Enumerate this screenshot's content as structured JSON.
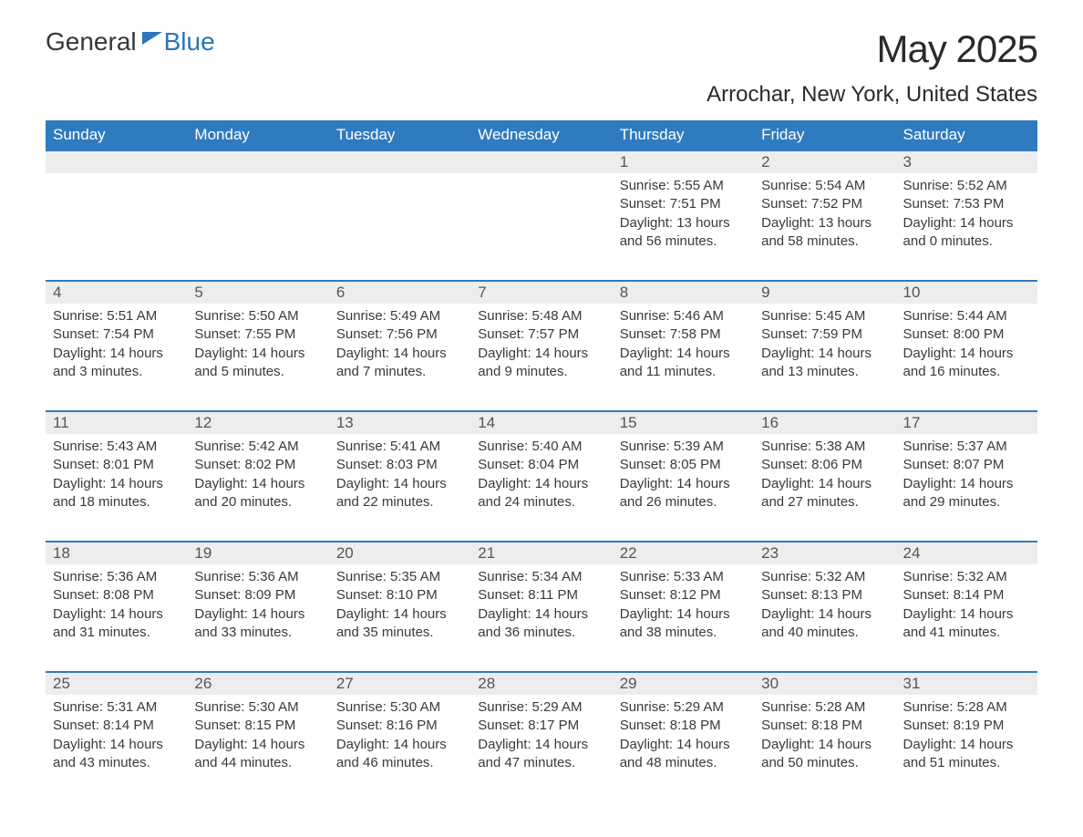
{
  "logo": {
    "text_general": "General",
    "text_blue": "Blue"
  },
  "title": "May 2025",
  "location": "Arrochar, New York, United States",
  "colors": {
    "header_bg": "#2f7bbf",
    "header_text": "#ffffff",
    "daynum_bg": "#ededed",
    "daynum_text": "#555555",
    "body_text": "#3a3a3a",
    "logo_general": "#373737",
    "logo_blue": "#2c75b8",
    "title_text": "#2a2a2a",
    "border_top": "#2f7bbf",
    "background": "#ffffff"
  },
  "typography": {
    "month_title_size": 42,
    "location_size": 24,
    "weekday_size": 17,
    "daynum_size": 17,
    "content_size": 15,
    "logo_size": 28
  },
  "weekdays": [
    "Sunday",
    "Monday",
    "Tuesday",
    "Wednesday",
    "Thursday",
    "Friday",
    "Saturday"
  ],
  "weeks": [
    [
      null,
      null,
      null,
      null,
      {
        "day": "1",
        "sunrise": "5:55 AM",
        "sunset": "7:51 PM",
        "daylight": "13 hours and 56 minutes."
      },
      {
        "day": "2",
        "sunrise": "5:54 AM",
        "sunset": "7:52 PM",
        "daylight": "13 hours and 58 minutes."
      },
      {
        "day": "3",
        "sunrise": "5:52 AM",
        "sunset": "7:53 PM",
        "daylight": "14 hours and 0 minutes."
      }
    ],
    [
      {
        "day": "4",
        "sunrise": "5:51 AM",
        "sunset": "7:54 PM",
        "daylight": "14 hours and 3 minutes."
      },
      {
        "day": "5",
        "sunrise": "5:50 AM",
        "sunset": "7:55 PM",
        "daylight": "14 hours and 5 minutes."
      },
      {
        "day": "6",
        "sunrise": "5:49 AM",
        "sunset": "7:56 PM",
        "daylight": "14 hours and 7 minutes."
      },
      {
        "day": "7",
        "sunrise": "5:48 AM",
        "sunset": "7:57 PM",
        "daylight": "14 hours and 9 minutes."
      },
      {
        "day": "8",
        "sunrise": "5:46 AM",
        "sunset": "7:58 PM",
        "daylight": "14 hours and 11 minutes."
      },
      {
        "day": "9",
        "sunrise": "5:45 AM",
        "sunset": "7:59 PM",
        "daylight": "14 hours and 13 minutes."
      },
      {
        "day": "10",
        "sunrise": "5:44 AM",
        "sunset": "8:00 PM",
        "daylight": "14 hours and 16 minutes."
      }
    ],
    [
      {
        "day": "11",
        "sunrise": "5:43 AM",
        "sunset": "8:01 PM",
        "daylight": "14 hours and 18 minutes."
      },
      {
        "day": "12",
        "sunrise": "5:42 AM",
        "sunset": "8:02 PM",
        "daylight": "14 hours and 20 minutes."
      },
      {
        "day": "13",
        "sunrise": "5:41 AM",
        "sunset": "8:03 PM",
        "daylight": "14 hours and 22 minutes."
      },
      {
        "day": "14",
        "sunrise": "5:40 AM",
        "sunset": "8:04 PM",
        "daylight": "14 hours and 24 minutes."
      },
      {
        "day": "15",
        "sunrise": "5:39 AM",
        "sunset": "8:05 PM",
        "daylight": "14 hours and 26 minutes."
      },
      {
        "day": "16",
        "sunrise": "5:38 AM",
        "sunset": "8:06 PM",
        "daylight": "14 hours and 27 minutes."
      },
      {
        "day": "17",
        "sunrise": "5:37 AM",
        "sunset": "8:07 PM",
        "daylight": "14 hours and 29 minutes."
      }
    ],
    [
      {
        "day": "18",
        "sunrise": "5:36 AM",
        "sunset": "8:08 PM",
        "daylight": "14 hours and 31 minutes."
      },
      {
        "day": "19",
        "sunrise": "5:36 AM",
        "sunset": "8:09 PM",
        "daylight": "14 hours and 33 minutes."
      },
      {
        "day": "20",
        "sunrise": "5:35 AM",
        "sunset": "8:10 PM",
        "daylight": "14 hours and 35 minutes."
      },
      {
        "day": "21",
        "sunrise": "5:34 AM",
        "sunset": "8:11 PM",
        "daylight": "14 hours and 36 minutes."
      },
      {
        "day": "22",
        "sunrise": "5:33 AM",
        "sunset": "8:12 PM",
        "daylight": "14 hours and 38 minutes."
      },
      {
        "day": "23",
        "sunrise": "5:32 AM",
        "sunset": "8:13 PM",
        "daylight": "14 hours and 40 minutes."
      },
      {
        "day": "24",
        "sunrise": "5:32 AM",
        "sunset": "8:14 PM",
        "daylight": "14 hours and 41 minutes."
      }
    ],
    [
      {
        "day": "25",
        "sunrise": "5:31 AM",
        "sunset": "8:14 PM",
        "daylight": "14 hours and 43 minutes."
      },
      {
        "day": "26",
        "sunrise": "5:30 AM",
        "sunset": "8:15 PM",
        "daylight": "14 hours and 44 minutes."
      },
      {
        "day": "27",
        "sunrise": "5:30 AM",
        "sunset": "8:16 PM",
        "daylight": "14 hours and 46 minutes."
      },
      {
        "day": "28",
        "sunrise": "5:29 AM",
        "sunset": "8:17 PM",
        "daylight": "14 hours and 47 minutes."
      },
      {
        "day": "29",
        "sunrise": "5:29 AM",
        "sunset": "8:18 PM",
        "daylight": "14 hours and 48 minutes."
      },
      {
        "day": "30",
        "sunrise": "5:28 AM",
        "sunset": "8:18 PM",
        "daylight": "14 hours and 50 minutes."
      },
      {
        "day": "31",
        "sunrise": "5:28 AM",
        "sunset": "8:19 PM",
        "daylight": "14 hours and 51 minutes."
      }
    ]
  ],
  "labels": {
    "sunrise": "Sunrise: ",
    "sunset": "Sunset: ",
    "daylight": "Daylight: "
  }
}
